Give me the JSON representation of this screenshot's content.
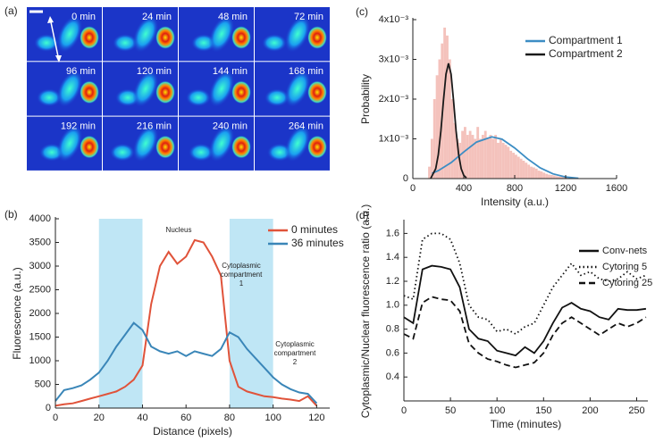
{
  "image_panel": {
    "label": "(a)",
    "time_labels": [
      "0 min",
      "24 min",
      "48 min",
      "72 min",
      "96 min",
      "120 min",
      "144 min",
      "168 min",
      "192 min",
      "216 min",
      "240 min",
      "264 min"
    ]
  },
  "chart_data": [
    {
      "type": "line",
      "panel_label": "(b)",
      "x_label": "Distance (pixels)",
      "y_label": "Fluorescence (a.u.)",
      "xlim": [
        0,
        126
      ],
      "ylim": [
        0,
        4000
      ],
      "xticks": [
        0,
        20,
        40,
        60,
        80,
        100,
        120
      ],
      "yticks": [
        0,
        500,
        1000,
        1500,
        2000,
        2500,
        3000,
        3500,
        4000
      ],
      "legend": "upper right",
      "shaded_regions": [
        [
          20,
          40
        ],
        [
          80,
          100
        ]
      ],
      "shade_color": "#bfe6f5",
      "annotations": [
        [
          "Nucleus"
        ],
        [
          "Cytoplasmic",
          "compartment",
          "1"
        ],
        [
          "Cytoplasmic",
          "compartment",
          "2"
        ]
      ],
      "x": [
        0,
        4,
        8,
        12,
        16,
        20,
        24,
        28,
        32,
        36,
        40,
        44,
        48,
        52,
        56,
        60,
        64,
        68,
        72,
        76,
        80,
        84,
        88,
        92,
        96,
        100,
        104,
        108,
        112,
        116,
        120
      ],
      "series": [
        {
          "name": "0 minutes",
          "color": "#e0533a",
          "dash": "solid",
          "values": [
            50,
            80,
            100,
            150,
            200,
            250,
            300,
            350,
            450,
            600,
            900,
            2200,
            3000,
            3300,
            3050,
            3200,
            3550,
            3500,
            3200,
            2800,
            1000,
            450,
            350,
            300,
            250,
            230,
            200,
            180,
            150,
            250,
            50
          ]
        },
        {
          "name": "36 minutes",
          "color": "#3a86b8",
          "dash": "solid",
          "values": [
            150,
            380,
            420,
            480,
            600,
            750,
            1000,
            1300,
            1550,
            1800,
            1650,
            1300,
            1200,
            1150,
            1200,
            1100,
            1200,
            1150,
            1100,
            1250,
            1600,
            1500,
            1250,
            1050,
            850,
            650,
            500,
            400,
            330,
            300,
            100
          ]
        }
      ]
    },
    {
      "type": "histogram",
      "panel_label": "(c)",
      "x_label": "Intensity (a.u.)",
      "y_label": "Probability",
      "xlim": [
        0,
        1600
      ],
      "ylim": [
        0,
        0.004
      ],
      "xticks": [
        0,
        400,
        800,
        1200,
        1600
      ],
      "yticks": [
        0,
        {
          "value": 0.001,
          "label": "1x10⁻³"
        },
        {
          "value": 0.002,
          "label": "2x10⁻³"
        },
        {
          "value": 0.003,
          "label": "3x10⁻³"
        },
        {
          "value": 0.004,
          "label": "4x10⁻³"
        }
      ],
      "legend": "upper right",
      "color": "#f4c2bc",
      "bins": [
        120,
        140,
        160,
        180,
        200,
        220,
        240,
        260,
        280,
        300,
        320,
        340,
        360,
        380,
        400,
        420,
        440,
        460,
        480,
        500,
        520,
        540,
        560,
        580,
        600,
        620,
        640,
        660,
        680,
        700,
        720,
        740,
        760,
        780,
        800,
        820,
        840,
        860,
        880,
        900,
        920,
        940,
        960,
        980,
        1000,
        1020,
        1040,
        1060,
        1080,
        1100,
        1120,
        1140,
        1160,
        1180,
        1200,
        1220,
        1240,
        1260,
        1280,
        1300,
        1320
      ],
      "values": [
        0.0003,
        0.001,
        0.002,
        0.0026,
        0.003,
        0.0034,
        0.0038,
        0.0036,
        0.003,
        0.002,
        0.0014,
        0.001,
        0.0009,
        0.0012,
        0.0013,
        0.0011,
        0.0012,
        0.0011,
        0.001,
        0.0013,
        0.001,
        0.0011,
        0.0012,
        0.001,
        0.0011,
        0.001,
        0.0011,
        0.0009,
        0.001,
        0.0009,
        0.00085,
        0.0008,
        0.0007,
        0.00065,
        0.0006,
        0.00055,
        0.0005,
        0.00045,
        0.0004,
        0.00035,
        0.0003,
        0.00028,
        0.00025,
        0.0002,
        0.00018,
        0.00015,
        0.00012,
        0.0001,
        9e-05,
        8e-05,
        6e-05,
        5e-05,
        5e-05,
        4e-05,
        3e-05,
        3e-05,
        2e-05,
        2e-05,
        1e-05,
        1e-05
      ],
      "series": [
        {
          "name": "Compartment 1",
          "color": "#3c8dc4",
          "x": [
            150,
            200,
            300,
            400,
            500,
            620,
            700,
            800,
            900,
            1000,
            1100,
            1200,
            1300
          ],
          "values": [
            0.00013,
            0.0002,
            0.0004,
            0.00067,
            0.00092,
            0.00105,
            0.00099,
            0.00077,
            0.0005,
            0.00027,
            0.00012,
            4e-05,
            1e-05
          ]
        },
        {
          "name": "Compartment 2",
          "color": "#1a1a1a",
          "x": [
            140,
            180,
            200,
            220,
            240,
            260,
            280,
            300,
            320,
            340,
            360,
            380,
            400,
            420
          ],
          "values": [
            0,
            0.00025,
            0.0006,
            0.0012,
            0.00195,
            0.00263,
            0.0029,
            0.00263,
            0.00195,
            0.0012,
            0.0006,
            0.00025,
            8e-05,
            2e-05
          ]
        }
      ]
    },
    {
      "type": "line",
      "panel_label": "(d)",
      "x_label": "Time (minutes)",
      "y_label": "Cytoplasmic/Nuclear fluorescence ratio (a.u.)",
      "xlim": [
        0,
        262
      ],
      "ylim": [
        0.2,
        1.7
      ],
      "xticks": [
        0,
        50,
        100,
        150,
        200,
        250
      ],
      "yticks": [
        0.4,
        0.6,
        0.8,
        {
          "value": 1,
          "label": "1.0"
        },
        1.2,
        1.4,
        1.6
      ],
      "legend": "upper right",
      "x": [
        0,
        10,
        20,
        30,
        40,
        50,
        60,
        70,
        80,
        90,
        100,
        110,
        120,
        130,
        140,
        150,
        160,
        170,
        180,
        190,
        200,
        210,
        220,
        230,
        240,
        250,
        260
      ],
      "series": [
        {
          "name": "Conv-nets",
          "color": "#111111",
          "dash": "solid",
          "values": [
            0.9,
            0.85,
            1.3,
            1.33,
            1.32,
            1.3,
            1.15,
            0.8,
            0.72,
            0.7,
            0.62,
            0.6,
            0.58,
            0.65,
            0.6,
            0.7,
            0.85,
            0.98,
            1.02,
            0.97,
            0.95,
            0.9,
            0.88,
            0.97,
            0.96,
            0.96,
            0.97
          ]
        },
        {
          "name": "Cytoring 5",
          "color": "#111111",
          "dash": "dotted",
          "values": [
            1.08,
            1.05,
            1.55,
            1.6,
            1.6,
            1.55,
            1.35,
            1.0,
            0.9,
            0.88,
            0.78,
            0.8,
            0.76,
            0.82,
            0.85,
            1.0,
            1.15,
            1.25,
            1.35,
            1.25,
            1.28,
            1.22,
            1.2,
            1.22,
            1.28,
            1.22,
            1.25
          ]
        },
        {
          "name": "Cytoring 25",
          "color": "#111111",
          "dash": "dashed",
          "values": [
            0.76,
            0.72,
            1.02,
            1.07,
            1.05,
            1.04,
            0.95,
            0.68,
            0.6,
            0.55,
            0.53,
            0.5,
            0.48,
            0.5,
            0.52,
            0.6,
            0.75,
            0.85,
            0.9,
            0.85,
            0.8,
            0.75,
            0.8,
            0.85,
            0.82,
            0.85,
            0.9
          ]
        }
      ]
    }
  ]
}
